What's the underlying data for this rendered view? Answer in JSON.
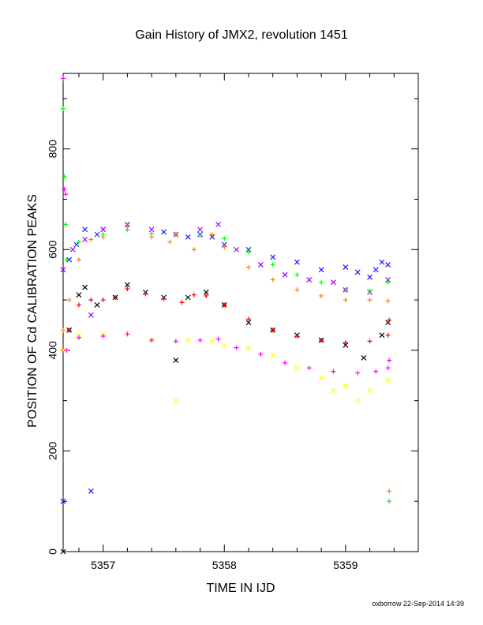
{
  "chart_data": {
    "type": "scatter",
    "title": "Gain History of JMX2, revolution 1451",
    "xlabel": "TIME IN IJD",
    "ylabel": "POSITION OF Cd CALIBRATION PEAKS",
    "xlim": [
      5356.67,
      5359.6
    ],
    "ylim": [
      0,
      950
    ],
    "xticks": [
      "5357",
      "5358",
      "5359"
    ],
    "yticks": [
      "0",
      "200",
      "400",
      "600",
      "800"
    ],
    "grid": false,
    "legend": "none",
    "series": [
      {
        "color": "#1a1aff",
        "marker": "x",
        "points": [
          [
            5356.67,
            100
          ],
          [
            5356.72,
            580
          ],
          [
            5356.78,
            610
          ],
          [
            5356.85,
            640
          ],
          [
            5356.9,
            120
          ],
          [
            5356.95,
            630
          ],
          [
            5357.0,
            640
          ],
          [
            5357.2,
            650
          ],
          [
            5357.5,
            635
          ],
          [
            5357.7,
            625
          ],
          [
            5357.8,
            630
          ],
          [
            5357.9,
            625
          ],
          [
            5358.0,
            610
          ],
          [
            5358.2,
            600
          ],
          [
            5358.4,
            585
          ],
          [
            5358.6,
            575
          ],
          [
            5358.8,
            560
          ],
          [
            5359.0,
            565
          ],
          [
            5359.1,
            555
          ],
          [
            5359.2,
            545
          ],
          [
            5359.25,
            560
          ],
          [
            5359.3,
            575
          ],
          [
            5359.35,
            570
          ]
        ]
      },
      {
        "color": "#9900ff",
        "marker": "x",
        "points": [
          [
            5356.67,
            560
          ],
          [
            5356.75,
            600
          ],
          [
            5356.85,
            620
          ],
          [
            5356.9,
            470
          ],
          [
            5357.0,
            640
          ],
          [
            5357.2,
            650
          ],
          [
            5357.4,
            640
          ],
          [
            5357.6,
            630
          ],
          [
            5357.8,
            640
          ],
          [
            5357.95,
            650
          ],
          [
            5358.1,
            600
          ],
          [
            5358.3,
            570
          ],
          [
            5358.5,
            550
          ],
          [
            5358.7,
            540
          ],
          [
            5358.9,
            535
          ],
          [
            5359.0,
            520
          ],
          [
            5359.2,
            515
          ],
          [
            5359.35,
            540
          ]
        ]
      },
      {
        "color": "#00ff00",
        "marker": "+",
        "points": [
          [
            5356.67,
            880
          ],
          [
            5356.68,
            745
          ],
          [
            5356.69,
            650
          ],
          [
            5356.7,
            580
          ],
          [
            5356.8,
            615
          ],
          [
            5357.0,
            630
          ],
          [
            5357.2,
            640
          ],
          [
            5357.4,
            632
          ],
          [
            5357.6,
            630
          ],
          [
            5357.8,
            628
          ],
          [
            5358.0,
            622
          ],
          [
            5358.2,
            595
          ],
          [
            5358.4,
            570
          ],
          [
            5358.6,
            550
          ],
          [
            5358.8,
            535
          ],
          [
            5359.0,
            520
          ],
          [
            5359.2,
            518
          ],
          [
            5359.35,
            535
          ],
          [
            5359.36,
            100
          ]
        ]
      },
      {
        "color": "#ff8000",
        "marker": "+",
        "points": [
          [
            5356.67,
            440
          ],
          [
            5356.72,
            500
          ],
          [
            5356.8,
            580
          ],
          [
            5356.9,
            620
          ],
          [
            5357.0,
            625
          ],
          [
            5357.2,
            645
          ],
          [
            5357.4,
            625
          ],
          [
            5357.55,
            615
          ],
          [
            5357.6,
            630
          ],
          [
            5357.75,
            600
          ],
          [
            5357.9,
            630
          ],
          [
            5358.0,
            605
          ],
          [
            5358.2,
            565
          ],
          [
            5358.4,
            540
          ],
          [
            5358.6,
            520
          ],
          [
            5358.8,
            508
          ],
          [
            5359.0,
            500
          ],
          [
            5359.2,
            500
          ],
          [
            5359.35,
            498
          ],
          [
            5359.36,
            120
          ]
        ]
      },
      {
        "color": "#000000",
        "marker": "x",
        "points": [
          [
            5356.67,
            0
          ],
          [
            5356.72,
            440
          ],
          [
            5356.8,
            510
          ],
          [
            5356.85,
            525
          ],
          [
            5356.95,
            490
          ],
          [
            5357.1,
            505
          ],
          [
            5357.2,
            530
          ],
          [
            5357.35,
            515
          ],
          [
            5357.5,
            505
          ],
          [
            5357.6,
            380
          ],
          [
            5357.7,
            505
          ],
          [
            5357.85,
            515
          ],
          [
            5358.0,
            490
          ],
          [
            5358.2,
            455
          ],
          [
            5358.4,
            440
          ],
          [
            5358.6,
            430
          ],
          [
            5358.8,
            420
          ],
          [
            5359.0,
            410
          ],
          [
            5359.15,
            385
          ],
          [
            5359.3,
            430
          ],
          [
            5359.35,
            455
          ]
        ]
      },
      {
        "color": "#ff0000",
        "marker": "+",
        "points": [
          [
            5356.67,
            400
          ],
          [
            5356.72,
            440
          ],
          [
            5356.8,
            490
          ],
          [
            5356.9,
            500
          ],
          [
            5357.0,
            500
          ],
          [
            5357.1,
            505
          ],
          [
            5357.2,
            522
          ],
          [
            5357.35,
            512
          ],
          [
            5357.5,
            502
          ],
          [
            5357.65,
            495
          ],
          [
            5357.75,
            510
          ],
          [
            5357.85,
            508
          ],
          [
            5358.0,
            490
          ],
          [
            5358.2,
            462
          ],
          [
            5358.4,
            440
          ],
          [
            5358.6,
            428
          ],
          [
            5358.8,
            420
          ],
          [
            5359.0,
            415
          ],
          [
            5359.2,
            418
          ],
          [
            5359.35,
            430
          ],
          [
            5359.36,
            460
          ]
        ]
      },
      {
        "color": "#ffff00",
        "marker": "x",
        "points": [
          [
            5356.67,
            400
          ],
          [
            5356.8,
            430
          ],
          [
            5357.0,
            432
          ],
          [
            5357.2,
            435
          ],
          [
            5357.4,
            420
          ],
          [
            5357.6,
            300
          ],
          [
            5357.7,
            420
          ],
          [
            5357.9,
            418
          ],
          [
            5358.0,
            410
          ],
          [
            5358.2,
            405
          ],
          [
            5358.4,
            390
          ],
          [
            5358.6,
            365
          ],
          [
            5358.8,
            345
          ],
          [
            5358.9,
            320
          ],
          [
            5359.0,
            330
          ],
          [
            5359.1,
            300
          ],
          [
            5359.2,
            320
          ],
          [
            5359.35,
            340
          ]
        ]
      },
      {
        "color": "#ff00ff",
        "marker": "+",
        "points": [
          [
            5356.67,
            940
          ],
          [
            5356.68,
            720
          ],
          [
            5356.69,
            710
          ],
          [
            5356.7,
            400
          ],
          [
            5356.8,
            425
          ],
          [
            5357.0,
            428
          ],
          [
            5357.2,
            432
          ],
          [
            5357.4,
            420
          ],
          [
            5357.6,
            418
          ],
          [
            5357.8,
            420
          ],
          [
            5357.95,
            422
          ],
          [
            5358.1,
            405
          ],
          [
            5358.3,
            392
          ],
          [
            5358.5,
            375
          ],
          [
            5358.7,
            365
          ],
          [
            5358.9,
            358
          ],
          [
            5359.1,
            355
          ],
          [
            5359.25,
            358
          ],
          [
            5359.35,
            365
          ],
          [
            5359.36,
            380
          ]
        ]
      }
    ]
  },
  "footer": "oxborrow 22-Sep-2014 14:39"
}
